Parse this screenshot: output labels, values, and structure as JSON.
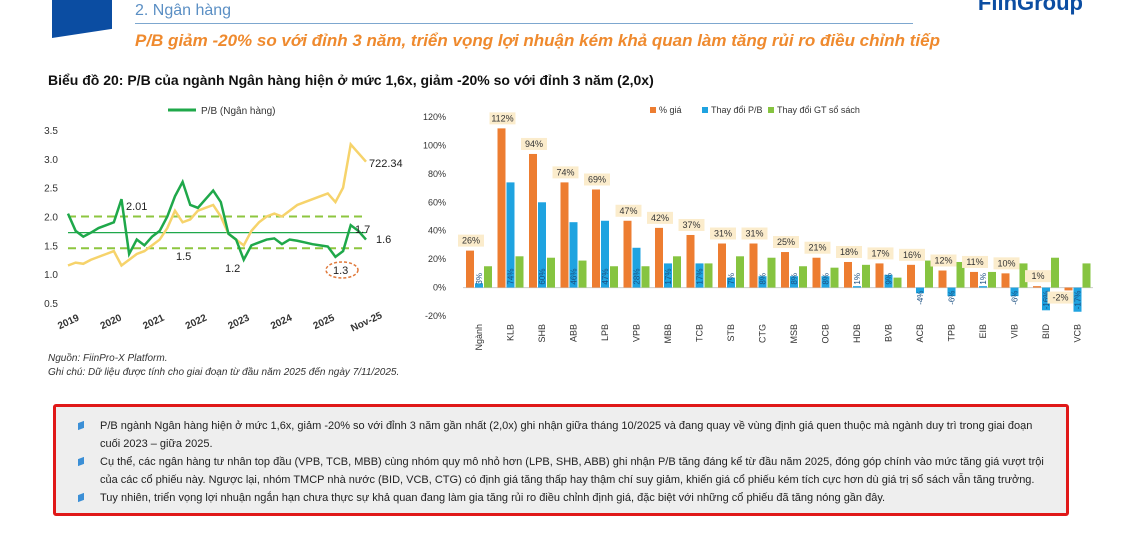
{
  "header": {
    "section": "2. Ngân hàng",
    "logo": "FiinGroup",
    "subtitle": "P/B giảm -20% so với đỉnh 3 năm, triển vọng lợi nhuận kém khả quan làm tăng rủi ro điều chỉnh tiếp",
    "chart_title": "Biểu đồ 20: P/B của ngành Ngân hàng hiện ở mức 1,6x, giảm -20% so với đỉnh 3 năm (2,0x)"
  },
  "colors": {
    "pb_line": "#1fa84a",
    "index_line": "#f6d36b",
    "band": "#8dc63f",
    "price": "#ed7d31",
    "pb_change": "#1fa3e0",
    "book": "#86c440",
    "label_bg": "#fbeccc"
  },
  "chart_data": [
    {
      "type": "line",
      "legend": "P/B (Ngân hàng)",
      "x_ticks": [
        "2019",
        "2020",
        "2021",
        "2022",
        "2023",
        "2024",
        "2025",
        "Nov-25"
      ],
      "y_ticks": [
        "3.5",
        "3.0",
        "2.5",
        "2.0",
        "1.5",
        "1.0",
        "0.5"
      ],
      "ylim": [
        0.5,
        3.5
      ],
      "annotations": {
        "high": "2.01",
        "mean": "1.7",
        "low_band": "1.5",
        "low_2023": "1.2",
        "low_2025": "1.3",
        "last_pb": "1.6",
        "last_index": "722.34"
      },
      "bands": {
        "upper": 2.0,
        "mean": 1.72,
        "lower": 1.45
      },
      "pb_series": [
        2.05,
        1.75,
        1.65,
        1.72,
        1.8,
        1.85,
        1.9,
        2.3,
        1.35,
        1.6,
        1.5,
        1.65,
        1.75,
        2.0,
        2.35,
        2.6,
        2.2,
        2.15,
        2.3,
        2.45,
        2.25,
        1.7,
        1.6,
        1.25,
        1.5,
        1.55,
        1.6,
        1.62,
        1.52,
        1.6,
        1.58,
        1.55,
        1.52,
        1.5,
        1.48,
        1.3,
        1.4,
        1.85,
        1.75,
        1.6
      ],
      "index_series": [
        1.15,
        1.2,
        1.18,
        1.25,
        1.3,
        1.35,
        1.4,
        1.15,
        1.25,
        1.35,
        1.4,
        1.5,
        1.6,
        1.8,
        2.1,
        1.9,
        1.95,
        2.1,
        2.15,
        2.2,
        2.0,
        1.7,
        1.6,
        1.5,
        1.75,
        1.9,
        2.0,
        2.05,
        2.0,
        2.1,
        2.2,
        2.25,
        2.3,
        2.35,
        2.4,
        2.25,
        2.5,
        3.25,
        3.1,
        2.95
      ]
    },
    {
      "type": "bar",
      "categories": [
        "Ngành",
        "KLB",
        "SHB",
        "ABB",
        "LPB",
        "VPB",
        "MBB",
        "TCB",
        "STB",
        "CTG",
        "MSB",
        "OCB",
        "HDB",
        "BVB",
        "ACB",
        "TPB",
        "EIB",
        "VIB",
        "BID",
        "VCB"
      ],
      "y_ticks": [
        "120%",
        "100%",
        "80%",
        "60%",
        "40%",
        "20%",
        "0%",
        "-20%"
      ],
      "ylim": [
        -20,
        120
      ],
      "series": [
        {
          "name": "% giá",
          "values": [
            26,
            112,
            94,
            74,
            69,
            47,
            42,
            37,
            31,
            31,
            25,
            21,
            18,
            17,
            16,
            12,
            11,
            10,
            1,
            -2
          ],
          "labels": [
            "26%",
            "112%",
            "94%",
            "74%",
            "69%",
            "47%",
            "42%",
            "37%",
            "31%",
            "31%",
            "25%",
            "21%",
            "18%",
            "17%",
            "16%",
            "12%",
            "11%",
            "10%",
            "1%",
            "-2%"
          ]
        },
        {
          "name": "Thay đổi P/B",
          "values": [
            3,
            74,
            60,
            46,
            47,
            28,
            17,
            17,
            7,
            8,
            8,
            8,
            1,
            9,
            -4,
            -6,
            1,
            -6,
            -16,
            -17
          ],
          "labels": [
            "3%",
            "74%",
            "60%",
            "46%",
            "47%",
            "28%",
            "17%",
            "17%",
            "7%",
            "8%",
            "8%",
            "8%",
            "1%",
            "9%",
            "-4%",
            "-6%",
            "1%",
            "-6%",
            "-16%",
            "-17%"
          ]
        },
        {
          "name": "Thay đổi GT sổ sách",
          "values": [
            15,
            22,
            21,
            19,
            15,
            15,
            22,
            17,
            22,
            21,
            15,
            14,
            16,
            7,
            19,
            18,
            11,
            17,
            21,
            17
          ]
        }
      ]
    }
  ],
  "notes": {
    "source": "Nguồn: FiinPro-X Platform.",
    "note": "Ghi chú: Dữ liệu được tính cho giai đoạn từ đầu năm 2025 đến ngày 7/11/2025."
  },
  "bullets": [
    "P/B ngành Ngân hàng hiện ở mức 1,6x, giảm -20% so với đỉnh 3 năm gần nhất (2,0x) ghi nhận giữa tháng 10/2025 và đang quay về vùng định giá quen thuộc mà ngành duy trì trong giai đoạn cuối 2023 – giữa 2025.",
    "Cụ thể, các ngân hàng tư nhân top đầu (VPB, TCB, MBB) cùng  nhóm quy mô nhỏ hơn (LPB, SHB, ABB) ghi nhận P/B tăng đáng kể từ đầu năm 2025, đóng góp chính vào mức tăng giá vượt trội của các cổ phiếu này. Ngược lại, nhóm TMCP nhà nước (BID, VCB, CTG) có định giá tăng thấp hay thậm chí suy giảm, khiến giá cổ phiếu kém tích cực hơn dù giá trị sổ sách vẫn tăng trưởng.",
    "Tuy nhiên, triển vọng lợi nhuận ngắn hạn chưa thực sự khả quan đang làm gia tăng rủi ro điều chỉnh định giá, đặc biệt với những cổ phiếu đã tăng nóng gần đây."
  ]
}
